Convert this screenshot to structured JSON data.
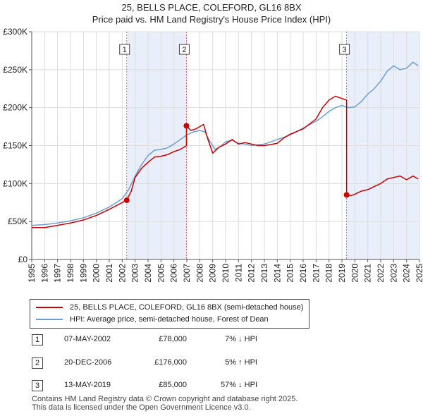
{
  "chart_data": {
    "type": "line",
    "title": "25, BELLS PLACE, COLEFORD, GL16 8BX",
    "subtitle": "Price paid vs. HM Land Registry's House Price Index (HPI)",
    "xlabel": "",
    "ylabel": "",
    "xlim": [
      1995,
      2025
    ],
    "ylim": [
      0,
      300000
    ],
    "x_ticks": [
      "1995",
      "1996",
      "1997",
      "1998",
      "1999",
      "2000",
      "2001",
      "2002",
      "2003",
      "2004",
      "2005",
      "2006",
      "2007",
      "2008",
      "2009",
      "2010",
      "2011",
      "2012",
      "2013",
      "2014",
      "2015",
      "2016",
      "2017",
      "2018",
      "2019",
      "2020",
      "2021",
      "2022",
      "2023",
      "2024",
      "2025"
    ],
    "y_ticks": [
      {
        "value": 0,
        "label": "£0"
      },
      {
        "value": 50000,
        "label": "£50K"
      },
      {
        "value": 100000,
        "label": "£100K"
      },
      {
        "value": 150000,
        "label": "£150K"
      },
      {
        "value": 200000,
        "label": "£200K"
      },
      {
        "value": 250000,
        "label": "£250K"
      },
      {
        "value": 300000,
        "label": "£300K"
      }
    ],
    "series": [
      {
        "name": "25, BELLS PLACE, COLEFORD, GL16 8BX (semi-detached house)",
        "color": "#cc0000",
        "points": [
          [
            1995,
            42000
          ],
          [
            1996,
            42000
          ],
          [
            1997,
            45000
          ],
          [
            1998,
            48000
          ],
          [
            1999,
            52000
          ],
          [
            2000,
            58000
          ],
          [
            2001,
            66000
          ],
          [
            2002.0,
            75000
          ],
          [
            2002.35,
            78000
          ],
          [
            2002.7,
            90000
          ],
          [
            2003,
            108000
          ],
          [
            2003.5,
            120000
          ],
          [
            2004,
            128000
          ],
          [
            2004.5,
            135000
          ],
          [
            2005,
            136000
          ],
          [
            2005.5,
            138000
          ],
          [
            2006,
            142000
          ],
          [
            2006.5,
            145000
          ],
          [
            2006.97,
            150000
          ],
          [
            2006.97,
            176000
          ],
          [
            2007.3,
            170000
          ],
          [
            2007.7,
            172000
          ],
          [
            2008,
            175000
          ],
          [
            2008.3,
            178000
          ],
          [
            2008.6,
            160000
          ],
          [
            2009,
            140000
          ],
          [
            2009.5,
            148000
          ],
          [
            2010,
            152000
          ],
          [
            2010.5,
            158000
          ],
          [
            2011,
            152000
          ],
          [
            2011.5,
            154000
          ],
          [
            2012,
            152000
          ],
          [
            2012.5,
            150000
          ],
          [
            2013,
            150000
          ],
          [
            2014,
            153000
          ],
          [
            2014.5,
            160000
          ],
          [
            2015,
            165000
          ],
          [
            2016,
            172000
          ],
          [
            2017,
            185000
          ],
          [
            2017.5,
            200000
          ],
          [
            2018,
            210000
          ],
          [
            2018.5,
            215000
          ],
          [
            2019.0,
            212000
          ],
          [
            2019.36,
            210000
          ],
          [
            2019.36,
            85000
          ],
          [
            2019.7,
            84000
          ],
          [
            2020,
            86000
          ],
          [
            2020.5,
            90000
          ],
          [
            2021,
            92000
          ],
          [
            2021.5,
            96000
          ],
          [
            2022,
            100000
          ],
          [
            2022.5,
            106000
          ],
          [
            2023,
            108000
          ],
          [
            2023.5,
            110000
          ],
          [
            2024,
            105000
          ],
          [
            2024.5,
            110000
          ],
          [
            2024.9,
            106000
          ]
        ]
      },
      {
        "name": "HPI: Average price, semi-detached house, Forest of Dean",
        "color": "#6a9fd8",
        "points": [
          [
            1995,
            45000
          ],
          [
            1996,
            46000
          ],
          [
            1997,
            48000
          ],
          [
            1998,
            51000
          ],
          [
            1999,
            55000
          ],
          [
            2000,
            61000
          ],
          [
            2001,
            69000
          ],
          [
            2002,
            80000
          ],
          [
            2002.5,
            92000
          ],
          [
            2003,
            110000
          ],
          [
            2003.5,
            125000
          ],
          [
            2004,
            137000
          ],
          [
            2004.5,
            144000
          ],
          [
            2005,
            145000
          ],
          [
            2005.5,
            147000
          ],
          [
            2006,
            152000
          ],
          [
            2006.5,
            158000
          ],
          [
            2007,
            164000
          ],
          [
            2007.5,
            168000
          ],
          [
            2008,
            170000
          ],
          [
            2008.4,
            168000
          ],
          [
            2008.8,
            155000
          ],
          [
            2009.2,
            145000
          ],
          [
            2009.7,
            150000
          ],
          [
            2010,
            155000
          ],
          [
            2010.5,
            157000
          ],
          [
            2011,
            153000
          ],
          [
            2011.5,
            152000
          ],
          [
            2012,
            150000
          ],
          [
            2012.5,
            151000
          ],
          [
            2013,
            152000
          ],
          [
            2013.5,
            155000
          ],
          [
            2014,
            158000
          ],
          [
            2015,
            164000
          ],
          [
            2016,
            173000
          ],
          [
            2017,
            182000
          ],
          [
            2017.5,
            188000
          ],
          [
            2018,
            195000
          ],
          [
            2018.5,
            200000
          ],
          [
            2019,
            203000
          ],
          [
            2019.5,
            200000
          ],
          [
            2020,
            201000
          ],
          [
            2020.5,
            208000
          ],
          [
            2021,
            218000
          ],
          [
            2021.5,
            225000
          ],
          [
            2022,
            235000
          ],
          [
            2022.5,
            248000
          ],
          [
            2023,
            255000
          ],
          [
            2023.5,
            250000
          ],
          [
            2024,
            252000
          ],
          [
            2024.5,
            260000
          ],
          [
            2024.9,
            255000
          ]
        ]
      }
    ],
    "sales": [
      {
        "id": "1",
        "x": 2002.35,
        "y": 78000
      },
      {
        "id": "2",
        "x": 2006.97,
        "y": 176000
      },
      {
        "id": "3",
        "x": 2019.36,
        "y": 85000
      }
    ],
    "shaded_ranges": [
      [
        2002.35,
        2006.97
      ],
      [
        2019.36,
        2025
      ]
    ]
  },
  "legend": {
    "property_label": "25, BELLS PLACE, COLEFORD, GL16 8BX (semi-detached house)",
    "hpi_label": "HPI: Average price, semi-detached house, Forest of Dean"
  },
  "transactions": [
    {
      "num": "1",
      "date": "07-MAY-2002",
      "price": "£78,000",
      "hpi": "7% ↓ HPI"
    },
    {
      "num": "2",
      "date": "20-DEC-2006",
      "price": "£176,000",
      "hpi": "5% ↑ HPI"
    },
    {
      "num": "3",
      "date": "13-MAY-2019",
      "price": "£85,000",
      "hpi": "57% ↓ HPI"
    }
  ],
  "footer": {
    "line1": "Contains HM Land Registry data © Crown copyright and database right 2025.",
    "line2": "This data is licensed under the Open Government Licence v3.0."
  }
}
